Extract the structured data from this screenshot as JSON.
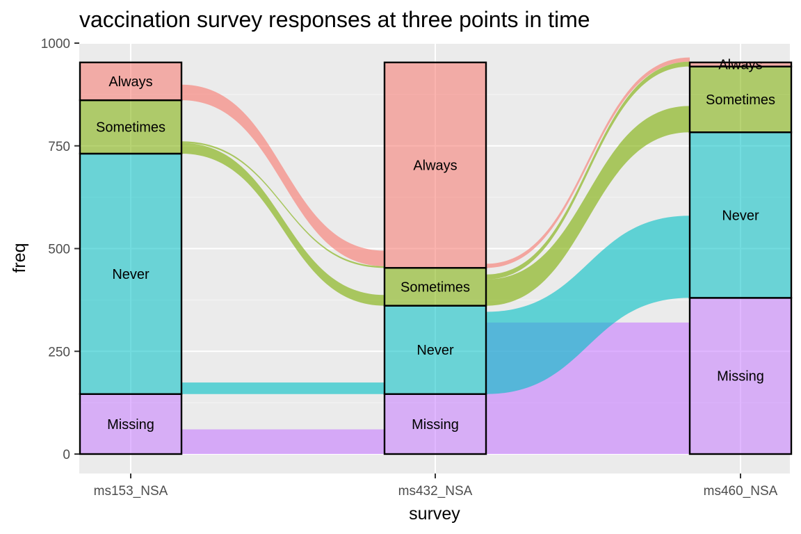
{
  "chart_data": {
    "type": "alluvial",
    "title": "vaccination survey responses at three points in time",
    "xlabel": "survey",
    "ylabel": "freq",
    "ylim": [
      0,
      1000
    ],
    "y_ticks": [
      0,
      250,
      500,
      750,
      1000
    ],
    "grid": true,
    "panel_background": "#ebebeb",
    "axes": [
      "ms153_NSA",
      "ms432_NSA",
      "ms460_NSA"
    ],
    "categories": [
      "Always",
      "Sometimes",
      "Never",
      "Missing"
    ],
    "colors": {
      "Always": "#f8766d",
      "Sometimes": "#7cae00",
      "Never": "#00bfc4",
      "Missing": "#c77cff"
    },
    "stacking_order": [
      "Always",
      "Sometimes",
      "Never",
      "Missing"
    ],
    "strata": {
      "ms153_NSA": {
        "Always": 92,
        "Sometimes": 130,
        "Never": 585,
        "Missing": 146
      },
      "ms432_NSA": {
        "Always": 500,
        "Sometimes": 92,
        "Never": 215,
        "Missing": 146
      },
      "ms460_NSA": {
        "Always": 10,
        "Sometimes": 160,
        "Never": 403,
        "Missing": 380
      }
    },
    "flows": [
      {
        "Always": {
          "Always": 38,
          "Sometimes": 0,
          "Never": 0,
          "Missing": 0
        },
        "Sometimes": {
          "Always": 4,
          "Sometimes": 26,
          "Never": 0,
          "Missing": 0
        },
        "Never": {
          "Always": 0,
          "Sometimes": 0,
          "Never": 28,
          "Missing": 0
        },
        "Missing": {
          "Always": 0,
          "Sometimes": 0,
          "Never": 0,
          "Missing": 60
        }
      },
      {
        "Always": {
          "Always": 10,
          "Sometimes": 0,
          "Never": 0,
          "Missing": 0
        },
        "Sometimes": {
          "Always": 12,
          "Sometimes": 64,
          "Never": 0,
          "Missing": 0
        },
        "Never": {
          "Always": 0,
          "Sometimes": 0,
          "Never": 200,
          "Missing": 0
        },
        "Missing": {
          "Always": 0,
          "Sometimes": 0,
          "Never": 0,
          "Missing": 320
        }
      }
    ],
    "flow_opacity": 0.6
  }
}
